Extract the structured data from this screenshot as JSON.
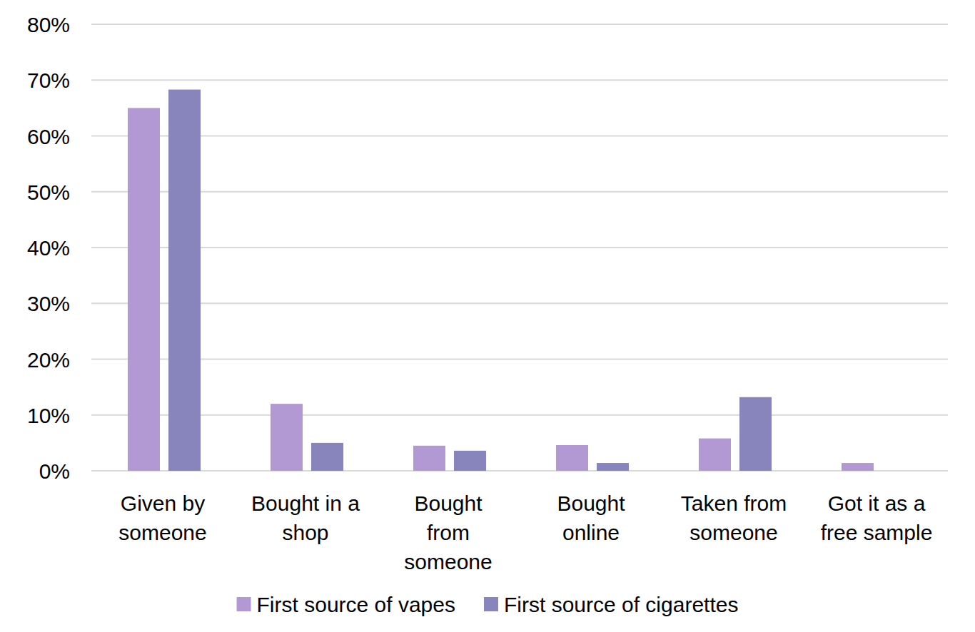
{
  "chart_data": {
    "type": "bar",
    "categories": [
      "Given by someone",
      "Bought in a shop",
      "Bought from someone",
      "Bought online",
      "Taken from someone",
      "Got it as a free sample"
    ],
    "series": [
      {
        "name": "First source of vapes",
        "color": "#b399d4",
        "values": [
          65,
          12,
          4.5,
          4.6,
          5.8,
          1.4
        ]
      },
      {
        "name": "First source of cigarettes",
        "color": "#8884bc",
        "values": [
          68.3,
          5,
          3.6,
          1.4,
          13.2,
          0
        ]
      }
    ],
    "ylim": [
      0,
      80
    ],
    "yticks": [
      {
        "value": 0,
        "label": "0%"
      },
      {
        "value": 10,
        "label": "10%"
      },
      {
        "value": 20,
        "label": "20%"
      },
      {
        "value": 30,
        "label": "30%"
      },
      {
        "value": 40,
        "label": "40%"
      },
      {
        "value": 50,
        "label": "50%"
      },
      {
        "value": 60,
        "label": "60%"
      },
      {
        "value": 70,
        "label": "70%"
      },
      {
        "value": 80,
        "label": "80%"
      }
    ],
    "grid": true,
    "legend": "bottom"
  }
}
